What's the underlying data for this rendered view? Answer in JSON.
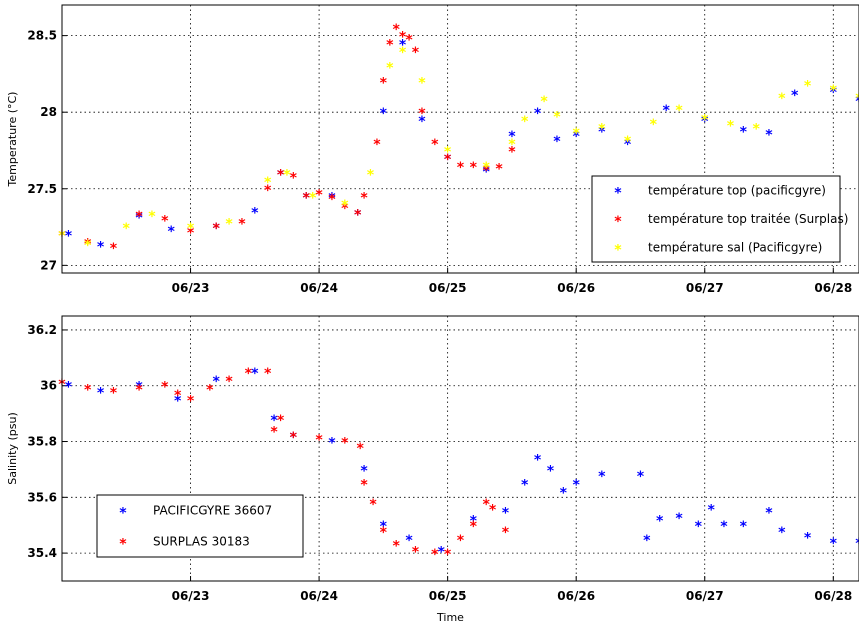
{
  "chart_data": [
    {
      "type": "scatter",
      "ylabel": "Temperature (°C)",
      "xlabel": "",
      "x_ticks": [
        "06/23",
        "06/24",
        "06/25",
        "06/26",
        "06/27",
        "06/28"
      ],
      "y_ticks": [
        "27",
        "27.5",
        "28",
        "28.5"
      ],
      "xlim": [
        22.0,
        28.2
      ],
      "ylim": [
        26.95,
        28.7
      ],
      "grid": true,
      "legend": "bottom-right",
      "series": [
        {
          "name": "température top (pacificgyre)",
          "color": "#0000ff",
          "marker": "*",
          "x": [
            22.05,
            22.3,
            22.6,
            22.85,
            23.2,
            23.5,
            23.7,
            23.9,
            24.1,
            24.3,
            24.5,
            24.65,
            24.8,
            25.0,
            25.3,
            25.5,
            25.7,
            25.85,
            26.0,
            26.2,
            26.4,
            26.7,
            27.0,
            27.3,
            27.5,
            27.7,
            28.0,
            28.2
          ],
          "y": [
            27.2,
            27.13,
            27.32,
            27.23,
            27.25,
            27.35,
            27.6,
            27.45,
            27.45,
            27.34,
            28.0,
            28.45,
            27.95,
            27.7,
            27.62,
            27.85,
            28.0,
            27.82,
            27.85,
            27.88,
            27.8,
            28.02,
            27.95,
            27.88,
            27.86,
            28.12,
            28.14,
            28.08
          ]
        },
        {
          "name": "température top traitée (Surplas)",
          "color": "#ff0000",
          "marker": "*",
          "x": [
            22.0,
            22.2,
            22.4,
            22.6,
            22.8,
            23.0,
            23.2,
            23.4,
            23.6,
            23.7,
            23.8,
            23.9,
            24.0,
            24.1,
            24.2,
            24.3,
            24.35,
            24.45,
            24.5,
            24.55,
            24.6,
            24.65,
            24.7,
            24.75,
            24.8,
            24.9,
            25.0,
            25.1,
            25.2,
            25.3,
            25.4,
            25.5
          ],
          "y": [
            27.2,
            27.15,
            27.12,
            27.33,
            27.3,
            27.22,
            27.25,
            27.28,
            27.5,
            27.6,
            27.58,
            27.45,
            27.47,
            27.44,
            27.38,
            27.34,
            27.45,
            27.8,
            28.2,
            28.45,
            28.55,
            28.5,
            28.48,
            28.4,
            28.0,
            27.8,
            27.7,
            27.65,
            27.65,
            27.63,
            27.64,
            27.75
          ]
        },
        {
          "name": "température sal (Pacificgyre)",
          "color": "#ffff00",
          "marker": "*",
          "x": [
            22.0,
            22.2,
            22.5,
            22.7,
            23.0,
            23.3,
            23.6,
            23.75,
            23.95,
            24.2,
            24.4,
            24.55,
            24.65,
            24.8,
            25.0,
            25.3,
            25.5,
            25.6,
            25.75,
            25.85,
            26.0,
            26.2,
            26.4,
            26.6,
            26.8,
            27.0,
            27.2,
            27.4,
            27.6,
            27.8,
            28.0,
            28.2
          ],
          "y": [
            27.2,
            27.14,
            27.25,
            27.33,
            27.25,
            27.28,
            27.55,
            27.6,
            27.45,
            27.4,
            27.6,
            28.3,
            28.4,
            28.2,
            27.75,
            27.65,
            27.8,
            27.95,
            28.08,
            27.98,
            27.87,
            27.9,
            27.82,
            27.93,
            28.02,
            27.96,
            27.92,
            27.9,
            28.1,
            28.18,
            28.15,
            28.1
          ]
        }
      ]
    },
    {
      "type": "scatter",
      "ylabel": "Salinity (psu)",
      "xlabel": "Time",
      "x_ticks": [
        "06/23",
        "06/24",
        "06/25",
        "06/26",
        "06/27",
        "06/28"
      ],
      "y_ticks": [
        "35.4",
        "35.6",
        "35.8",
        "36",
        "36.2"
      ],
      "xlim": [
        22.0,
        28.2
      ],
      "ylim": [
        35.3,
        36.25
      ],
      "grid": true,
      "legend": "bottom-left",
      "series": [
        {
          "name": "PACIFICGYRE 36607",
          "color": "#0000ff",
          "marker": "*",
          "x": [
            22.05,
            22.3,
            22.6,
            22.9,
            23.2,
            23.5,
            23.65,
            23.8,
            24.1,
            24.35,
            24.5,
            24.7,
            24.95,
            25.2,
            25.45,
            25.6,
            25.7,
            25.8,
            25.9,
            26.0,
            26.2,
            26.5,
            26.55,
            26.65,
            26.8,
            26.95,
            27.05,
            27.15,
            27.3,
            27.5,
            27.6,
            27.8,
            28.0,
            28.2
          ],
          "y": [
            36.0,
            35.98,
            36.0,
            35.95,
            36.02,
            36.05,
            35.88,
            35.82,
            35.8,
            35.7,
            35.5,
            35.45,
            35.41,
            35.52,
            35.55,
            35.65,
            35.74,
            35.7,
            35.62,
            35.65,
            35.68,
            35.68,
            35.45,
            35.52,
            35.53,
            35.5,
            35.56,
            35.5,
            35.5,
            35.55,
            35.48,
            35.46,
            35.44,
            35.44
          ]
        },
        {
          "name": "SURPLAS 30183",
          "color": "#ff0000",
          "marker": "*",
          "x": [
            22.0,
            22.2,
            22.4,
            22.6,
            22.8,
            22.9,
            23.0,
            23.15,
            23.3,
            23.45,
            23.6,
            23.65,
            23.7,
            23.8,
            24.0,
            24.2,
            24.32,
            24.35,
            24.42,
            24.5,
            24.6,
            24.75,
            24.9,
            25.0,
            25.1,
            25.2,
            25.3,
            25.35,
            25.45
          ],
          "y": [
            36.01,
            35.99,
            35.98,
            35.99,
            36.0,
            35.97,
            35.95,
            35.99,
            36.02,
            36.05,
            36.05,
            35.84,
            35.88,
            35.82,
            35.81,
            35.8,
            35.78,
            35.65,
            35.58,
            35.48,
            35.43,
            35.41,
            35.4,
            35.4,
            35.45,
            35.5,
            35.58,
            35.56,
            35.48
          ]
        }
      ]
    }
  ]
}
